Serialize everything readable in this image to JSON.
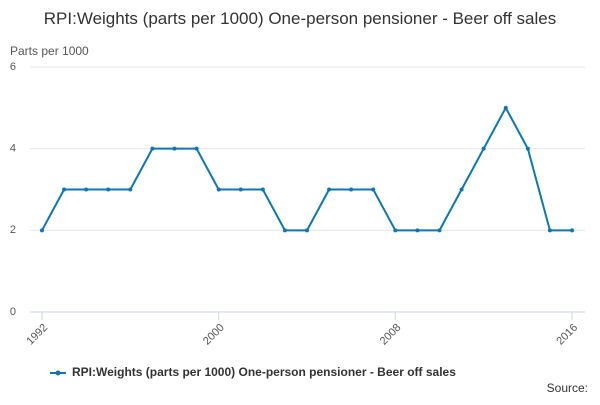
{
  "chart_data": {
    "type": "line",
    "title": "RPI:Weights (parts per 1000) One-person pensioner - Beer off sales",
    "y_label": "Parts per 1000",
    "source": "Source:",
    "x": [
      1992,
      1993,
      1994,
      1995,
      1996,
      1997,
      1998,
      1999,
      2000,
      2001,
      2002,
      2003,
      2004,
      2005,
      2006,
      2007,
      2008,
      2009,
      2010,
      2011,
      2012,
      2013,
      2014,
      2015,
      2016
    ],
    "series": [
      {
        "name": "RPI:Weights (parts per 1000) One-person pensioner - Beer off sales",
        "color": "#0b77b7",
        "values": [
          2,
          3,
          3,
          3,
          3,
          4,
          4,
          4,
          3,
          3,
          3,
          2,
          2,
          3,
          3,
          3,
          2,
          2,
          2,
          3,
          4,
          5,
          4,
          2,
          2
        ]
      }
    ],
    "xlim": [
      1992,
      2016
    ],
    "xticks": [
      1992,
      2000,
      2008,
      2016
    ],
    "ylim": [
      0,
      6
    ],
    "yticks": [
      0,
      2,
      4,
      6
    ],
    "grid": true
  }
}
